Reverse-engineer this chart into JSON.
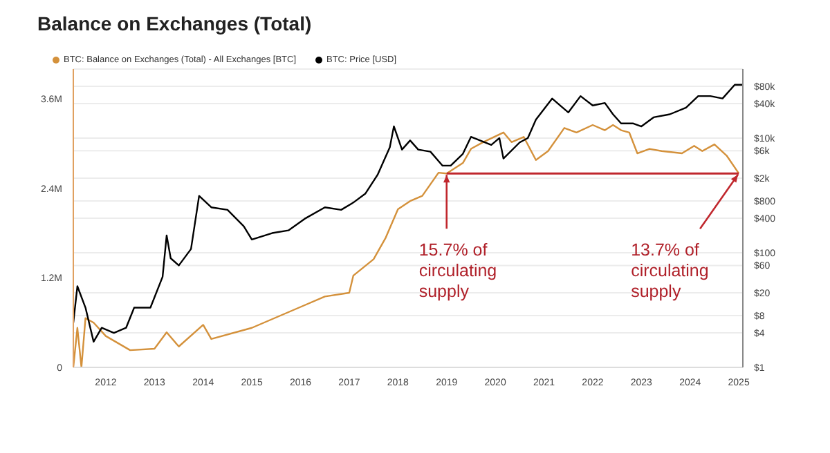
{
  "chart_data": {
    "type": "line",
    "title": "Balance on Exchanges (Total)",
    "legend": "top left",
    "grid": "y",
    "xlim": [
      "2011-05",
      "2025-02"
    ],
    "xticks": [
      "2012",
      "2013",
      "2014",
      "2015",
      "2016",
      "2017",
      "2018",
      "2019",
      "2020",
      "2021",
      "2022",
      "2023",
      "2024",
      "2025"
    ],
    "ylim": [
      0,
      4000000
    ],
    "yticks": [
      0,
      {
        "value": 1200000,
        "label": "1.2M"
      },
      {
        "value": 2400000,
        "label": "2.4M"
      },
      {
        "value": 3600000,
        "label": "3.6M"
      }
    ],
    "log": "y2",
    "y2lim": [
      1,
      160000
    ],
    "y2ticks": [
      {
        "value": 1,
        "label": "$1"
      },
      {
        "value": 4,
        "label": "$4"
      },
      {
        "value": 8,
        "label": "$8"
      },
      {
        "value": 20,
        "label": "$20"
      },
      {
        "value": 60,
        "label": "$60"
      },
      {
        "value": 100,
        "label": "$100"
      },
      {
        "value": 400,
        "label": "$400"
      },
      {
        "value": 800,
        "label": "$800"
      },
      {
        "value": 2000,
        "label": "$2k"
      },
      {
        "value": 6000,
        "label": "$6k"
      },
      {
        "value": 10000,
        "label": "$10k"
      },
      {
        "value": 40000,
        "label": "$40k"
      },
      {
        "value": 80000,
        "label": "$80k"
      }
    ],
    "series": [
      {
        "name": "BTC: Balance on Exchanges (Total) - All Exchanges [BTC]",
        "color": "#d4913b",
        "x": [
          "2011-05",
          "2011-06",
          "2011-07",
          "2011-08",
          "2011-10",
          "2012-01",
          "2012-07",
          "2013-01",
          "2013-04",
          "2013-07",
          "2014-01",
          "2014-03",
          "2015-01",
          "2016-01",
          "2016-07",
          "2017-01",
          "2017-02",
          "2017-07",
          "2017-10",
          "2018-01",
          "2018-04",
          "2018-07",
          "2018-11",
          "2019-01",
          "2019-05",
          "2019-07",
          "2019-10",
          "2020-03",
          "2020-05",
          "2020-08",
          "2020-11",
          "2021-02",
          "2021-06",
          "2021-09",
          "2022-01",
          "2022-04",
          "2022-06",
          "2022-08",
          "2022-10",
          "2022-12",
          "2023-03",
          "2023-06",
          "2023-11",
          "2024-02",
          "2024-04",
          "2024-07",
          "2024-10",
          "2025-01"
        ],
        "values": [
          0,
          530000,
          0,
          660000,
          600000,
          420000,
          230000,
          250000,
          470000,
          280000,
          570000,
          380000,
          530000,
          810000,
          950000,
          1000000,
          1230000,
          1450000,
          1740000,
          2120000,
          2230000,
          2300000,
          2610000,
          2600000,
          2740000,
          2930000,
          3020000,
          3150000,
          3020000,
          3090000,
          2780000,
          2900000,
          3210000,
          3150000,
          3250000,
          3180000,
          3250000,
          3180000,
          3150000,
          2870000,
          2930000,
          2900000,
          2870000,
          2970000,
          2900000,
          2990000,
          2840000,
          2600000
        ]
      },
      {
        "name": "BTC: Price [USD]",
        "color": "#000000",
        "axis": "y2",
        "x": [
          "2011-05",
          "2011-06",
          "2011-08",
          "2011-10",
          "2011-12",
          "2012-03",
          "2012-06",
          "2012-08",
          "2012-12",
          "2013-03",
          "2013-04",
          "2013-05",
          "2013-07",
          "2013-10",
          "2013-12",
          "2014-03",
          "2014-07",
          "2014-11",
          "2015-01",
          "2015-06",
          "2015-10",
          "2016-02",
          "2016-07",
          "2016-11",
          "2017-02",
          "2017-05",
          "2017-08",
          "2017-11",
          "2017-12",
          "2018-02",
          "2018-04",
          "2018-06",
          "2018-09",
          "2018-12",
          "2019-02",
          "2019-05",
          "2019-07",
          "2019-12",
          "2020-02",
          "2020-03",
          "2020-07",
          "2020-09",
          "2020-11",
          "2021-03",
          "2021-05",
          "2021-07",
          "2021-10",
          "2022-01",
          "2022-04",
          "2022-06",
          "2022-08",
          "2022-11",
          "2023-01",
          "2023-04",
          "2023-08",
          "2023-12",
          "2024-03",
          "2024-06",
          "2024-09",
          "2024-12",
          "2025-02"
        ],
        "values": [
          6,
          26,
          11,
          2.8,
          4.9,
          4,
          4.9,
          11,
          11,
          38,
          200,
          80,
          60,
          116,
          980,
          620,
          560,
          290,
          170,
          220,
          245,
          390,
          620,
          560,
          750,
          1080,
          2300,
          6900,
          16000,
          6300,
          9100,
          6300,
          5800,
          3300,
          3300,
          5300,
          10500,
          7600,
          10000,
          4400,
          8400,
          10000,
          21000,
          49000,
          37000,
          28000,
          54000,
          37000,
          41000,
          26000,
          18000,
          18000,
          16000,
          23000,
          26000,
          34000,
          54000,
          54000,
          49000,
          85000,
          85000
        ]
      },
      {
        "type": "line",
        "color": "#c0272d",
        "x": [
          "2019-01",
          "2025-01"
        ],
        "values": [
          2600000,
          2600000
        ]
      }
    ],
    "annotations": [
      {
        "text": "15.7% of circulating supply",
        "x": "2019-01",
        "y": 2600000
      },
      {
        "text": "13.7% of circulating supply",
        "x": "2025-01",
        "y": 2600000
      }
    ]
  }
}
